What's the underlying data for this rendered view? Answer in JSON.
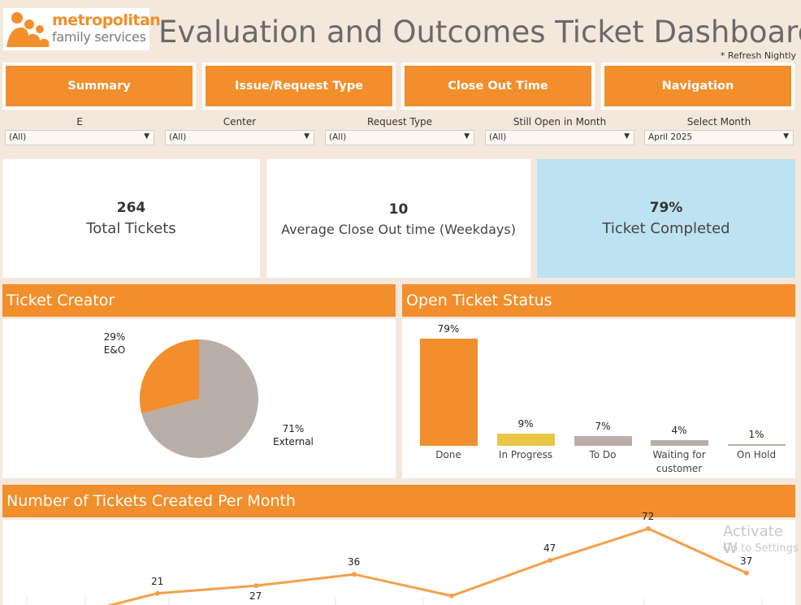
{
  "logo": {
    "line1": "metropolitan",
    "line2": "family services"
  },
  "header": {
    "title": "Evaluation and Outcomes Ticket Dashboard",
    "refresh_note": "* Refresh Nightly"
  },
  "nav": [
    "Summary",
    "Issue/Request Type",
    "Close Out Time",
    "Navigation"
  ],
  "filters": [
    {
      "label": "E",
      "value": "(All)"
    },
    {
      "label": "Center",
      "value": "(All)"
    },
    {
      "label": "Request Type",
      "value": "(All)"
    },
    {
      "label": "Still Open in Month",
      "value": "(All)"
    },
    {
      "label": "Select Month",
      "value": "April 2025"
    }
  ],
  "kpis": [
    {
      "value": "264",
      "caption": "Total Tickets"
    },
    {
      "value": "10",
      "caption": "Average Close Out time (Weekdays)"
    },
    {
      "value": "79%",
      "caption": "Ticket Completed"
    }
  ],
  "panels": {
    "creator": "Ticket Creator",
    "status": "Open Ticket Status",
    "monthly": "Number of Tickets Created Per Month"
  },
  "colors": {
    "accent": "#f28e2b",
    "grey": "#b9aea8",
    "yellow": "#e9c645",
    "kpi_blue": "#bde2f1"
  },
  "chart_data": [
    {
      "type": "pie",
      "title": "Ticket Creator",
      "slices": [
        {
          "label": "E&O",
          "value": 29,
          "display": "29%",
          "color": "#f28e2b"
        },
        {
          "label": "External",
          "value": 71,
          "display": "71%",
          "color": "#b9aea8"
        }
      ]
    },
    {
      "type": "bar",
      "title": "Open Ticket Status",
      "categories": [
        "Done",
        "In Progress",
        "To Do",
        "Waiting for customer",
        "On Hold"
      ],
      "values": [
        79,
        9,
        7,
        4,
        1
      ],
      "labels": [
        "79%",
        "9%",
        "7%",
        "4%",
        "1%"
      ],
      "colors": [
        "#f28e2b",
        "#e9c645",
        "#b9aea8",
        "#b9aea8",
        "#b9aea8"
      ]
    },
    {
      "type": "line",
      "title": "Number of Tickets Created Per Month",
      "values": [
        21,
        27,
        36,
        19,
        47,
        72,
        37
      ],
      "point_labels": [
        "21",
        "27",
        "36",
        "",
        "47",
        "72",
        "37"
      ]
    }
  ],
  "watermark": {
    "line1": "Activate W",
    "line2": "Go to Settings"
  }
}
